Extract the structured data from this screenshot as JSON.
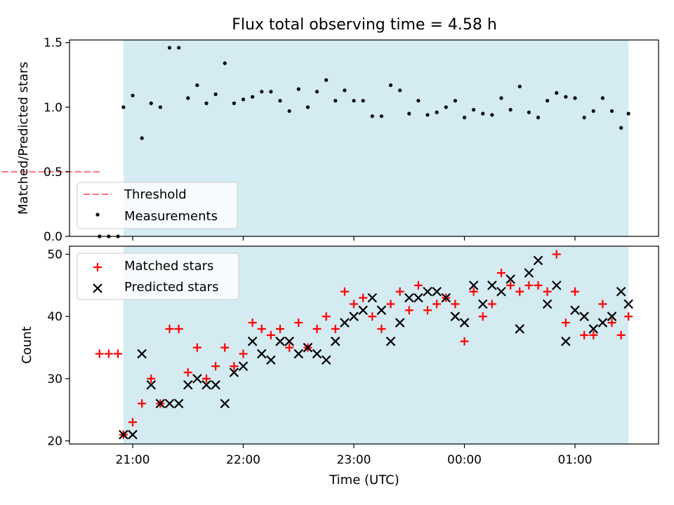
{
  "chart_data": {
    "title": "Flux total observing time = 4.58 h",
    "xlabel": "Time (UTC)",
    "x_ticks": [
      "21:00",
      "22:00",
      "23:00",
      "00:00",
      "01:00"
    ],
    "colors": {
      "shade": "#add8e6",
      "threshold": "#ff7070",
      "measurement": "#000000",
      "matched": "#ff0000",
      "predicted": "#000000"
    },
    "panels": [
      {
        "type": "scatter",
        "ylabel": "Matched/Predicted stars",
        "ylim": [
          0,
          1.52
        ],
        "yticks": [
          "0.0",
          "0.5",
          "1.0",
          "1.5"
        ],
        "yticks_values": [
          0,
          0.5,
          1.0,
          1.5
        ],
        "legend": {
          "placement": "lower-left",
          "entries": [
            "Threshold",
            "Measurements"
          ]
        },
        "threshold": {
          "name": "Threshold",
          "value": 0.5,
          "x_range": [
            "20:42",
            "01:29"
          ]
        },
        "series": [
          {
            "name": "Measurements",
            "x": [
              "20:42",
              "20:47",
              "20:52",
              "20:55",
              "21:00",
              "21:05",
              "21:10",
              "21:15",
              "21:20",
              "21:25",
              "21:30",
              "21:35",
              "21:40",
              "21:45",
              "21:50",
              "21:55",
              "22:00",
              "22:05",
              "22:10",
              "22:15",
              "22:20",
              "22:25",
              "22:30",
              "22:35",
              "22:40",
              "22:45",
              "22:50",
              "22:55",
              "23:00",
              "23:05",
              "23:10",
              "23:15",
              "23:20",
              "23:25",
              "23:30",
              "23:35",
              "23:40",
              "23:45",
              "23:50",
              "23:55",
              "24:00",
              "24:05",
              "24:10",
              "24:15",
              "24:20",
              "24:25",
              "24:30",
              "24:35",
              "24:40",
              "24:45",
              "24:50",
              "24:55",
              "25:00",
              "25:05",
              "25:10",
              "25:15",
              "25:20",
              "25:25"
            ],
            "y": [
              0,
              0,
              0,
              1.0,
              1.09,
              0.76,
              1.03,
              1.0,
              1.46,
              1.46,
              1.07,
              1.17,
              1.03,
              1.1,
              1.34,
              1.03,
              1.06,
              1.08,
              1.12,
              1.12,
              1.05,
              0.97,
              1.14,
              1.0,
              1.12,
              1.21,
              1.05,
              1.13,
              1.05,
              1.05,
              0.93,
              0.93,
              1.17,
              1.13,
              0.95,
              1.05,
              0.94,
              0.96,
              1.0,
              1.05,
              0.92,
              0.98,
              0.95,
              0.94,
              1.07,
              0.98,
              1.16,
              0.96,
              0.92,
              1.05,
              1.11,
              1.08,
              1.07,
              0.92,
              0.97,
              1.07,
              0.97,
              0.84
            ]
          }
        ],
        "extra_point": {
          "x": "25:29",
          "y": 0.95
        }
      },
      {
        "type": "scatter",
        "ylabel": "Count",
        "ylim": [
          19.5,
          51.3
        ],
        "yticks": [
          "20",
          "30",
          "40",
          "50"
        ],
        "yticks_values": [
          20,
          30,
          40,
          50
        ],
        "legend": {
          "placement": "upper-left",
          "entries": [
            "Matched stars",
            "Predicted stars"
          ]
        },
        "series": [
          {
            "name": "Matched stars",
            "marker": "+",
            "x": [
              "20:42",
              "20:47",
              "20:52",
              "20:55",
              "21:00",
              "21:05",
              "21:10",
              "21:15",
              "21:20",
              "21:25",
              "21:30",
              "21:35",
              "21:40",
              "21:45",
              "21:50",
              "21:55",
              "22:00",
              "22:05",
              "22:10",
              "22:15",
              "22:20",
              "22:25",
              "22:30",
              "22:35",
              "22:40",
              "22:45",
              "22:50",
              "22:55",
              "23:00",
              "23:05",
              "23:10",
              "23:15",
              "23:20",
              "23:25",
              "23:30",
              "23:35",
              "23:40",
              "23:45",
              "23:50",
              "23:55",
              "24:00",
              "24:05",
              "24:10",
              "24:15",
              "24:20",
              "24:25",
              "24:30",
              "24:35",
              "24:40",
              "24:45",
              "24:50",
              "24:55",
              "25:00",
              "25:05",
              "25:10",
              "25:15",
              "25:20",
              "25:25",
              "25:29"
            ],
            "y": [
              34,
              34,
              34,
              21,
              23,
              26,
              30,
              26,
              38,
              38,
              31,
              35,
              30,
              32,
              35,
              32,
              34,
              39,
              38,
              37,
              38,
              35,
              39,
              35,
              38,
              40,
              38,
              44,
              42,
              43,
              40,
              38,
              42,
              44,
              41,
              45,
              41,
              42,
              43,
              42,
              36,
              44,
              40,
              42,
              47,
              45,
              44,
              45,
              45,
              44,
              50,
              39,
              44,
              37,
              37,
              42,
              39,
              37,
              40
            ]
          },
          {
            "name": "Predicted stars",
            "marker": "x",
            "x": [
              "20:55",
              "21:00",
              "21:05",
              "21:10",
              "21:15",
              "21:20",
              "21:25",
              "21:30",
              "21:35",
              "21:40",
              "21:45",
              "21:50",
              "21:55",
              "22:00",
              "22:05",
              "22:10",
              "22:15",
              "22:20",
              "22:25",
              "22:30",
              "22:35",
              "22:40",
              "22:45",
              "22:50",
              "22:55",
              "23:00",
              "23:05",
              "23:10",
              "23:15",
              "23:20",
              "23:25",
              "23:30",
              "23:35",
              "23:40",
              "23:45",
              "23:50",
              "23:55",
              "24:00",
              "24:05",
              "24:10",
              "24:15",
              "24:20",
              "24:25",
              "24:30",
              "24:35",
              "24:40",
              "24:45",
              "24:50",
              "24:55",
              "25:00",
              "25:05",
              "25:10",
              "25:15",
              "25:20",
              "25:25",
              "25:29"
            ],
            "y": [
              21,
              21,
              34,
              29,
              26,
              26,
              26,
              29,
              30,
              29,
              29,
              26,
              31,
              32,
              36,
              34,
              33,
              36,
              36,
              34,
              35,
              34,
              33,
              36,
              39,
              40,
              41,
              43,
              41,
              36,
              39,
              43,
              43,
              44,
              44,
              43,
              40,
              39,
              45,
              42,
              45,
              44,
              46,
              38,
              47,
              49,
              42,
              45,
              36,
              41,
              40,
              38,
              39,
              40,
              44,
              42
            ]
          }
        ]
      }
    ],
    "shaded_span": [
      "20:55",
      "25:29"
    ]
  }
}
